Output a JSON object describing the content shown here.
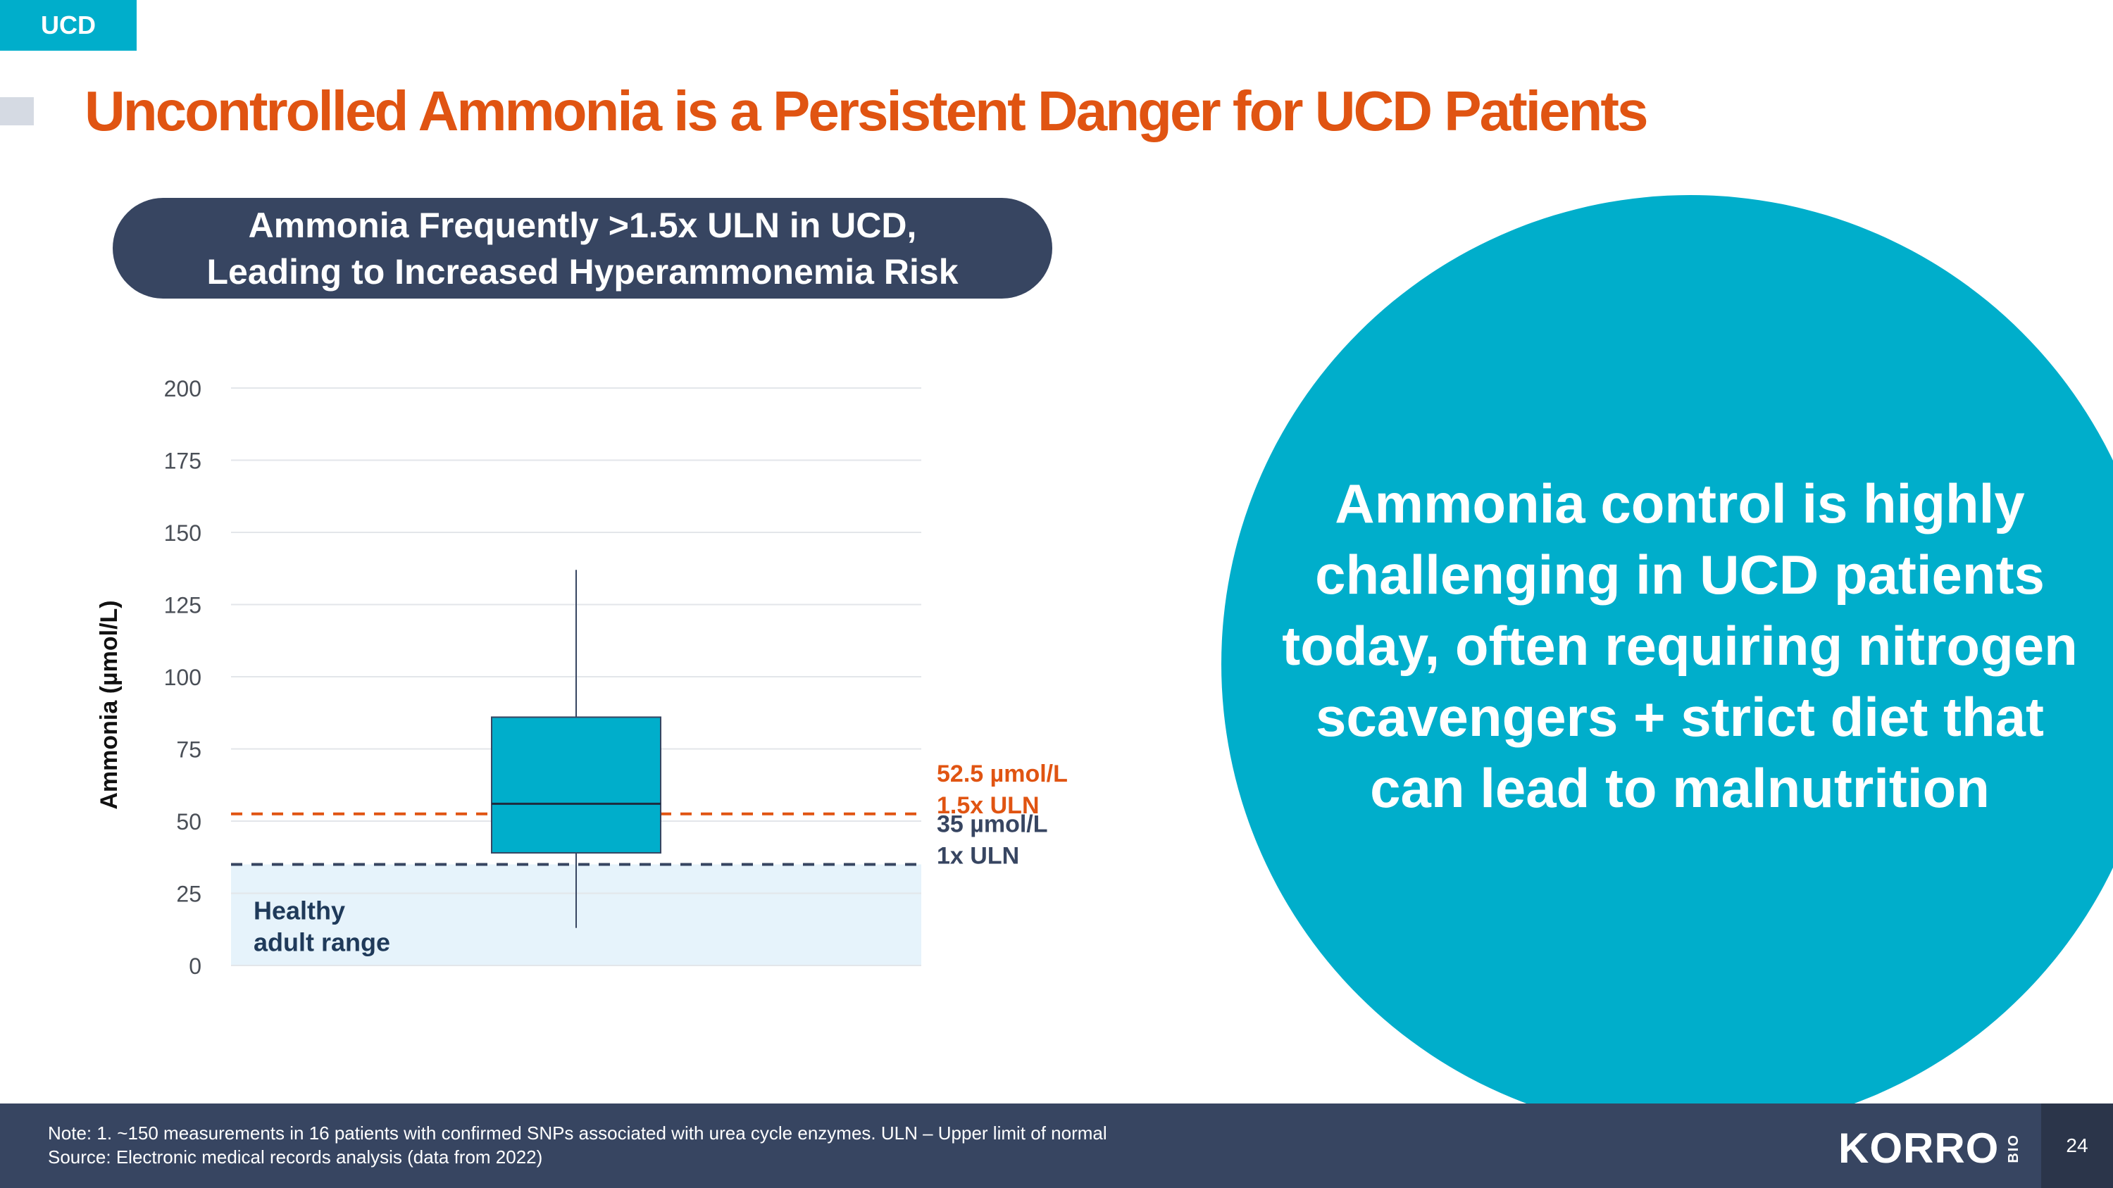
{
  "tag": "UCD",
  "title": "Uncontrolled Ammonia is a Persistent Danger for UCD Patients",
  "pill": {
    "line1": "Ammonia Frequently >1.5x ULN in UCD,",
    "line2": "Leading to Increased Hyperammonemia Risk"
  },
  "chart_data": {
    "type": "box",
    "ylabel": "Ammonia (µmol/L)",
    "xlabel": "",
    "ylim": [
      0,
      200
    ],
    "yticks": [
      0,
      25,
      50,
      75,
      100,
      125,
      150,
      175,
      200
    ],
    "grid": true,
    "box": {
      "min": 13,
      "q1": 39,
      "median": 56,
      "q3": 86,
      "max": 137
    },
    "reference_lines": [
      {
        "value": 52.5,
        "label_line1": "52.5 µmol/L",
        "label_line2": "1.5x ULN",
        "color": "#E05412"
      },
      {
        "value": 35,
        "label_line1": "35 µmol/L",
        "label_line2": "1x ULN",
        "color": "#374561"
      }
    ],
    "healthy_range": {
      "from": 0,
      "to": 35,
      "label_line1": "Healthy",
      "label_line2": "adult range"
    }
  },
  "callout": {
    "lines": [
      "Ammonia control is highly",
      "challenging in UCD patients",
      "today, often requiring nitrogen",
      "scavengers + strict diet that",
      "can lead to malnutrition"
    ]
  },
  "footer": {
    "note": "Note: 1. ~150 measurements in 16 patients with confirmed SNPs associated with urea cycle enzymes. ULN – Upper limit of normal",
    "source": "Source: Electronic medical records analysis (data from 2022)",
    "logo": "KORRO",
    "logo_sub": "BIO",
    "page_number": "24"
  },
  "colors": {
    "accent": "#00AECB",
    "title": "#E05412",
    "navy": "#374561",
    "healthy_fill": "#E6F3FB"
  }
}
